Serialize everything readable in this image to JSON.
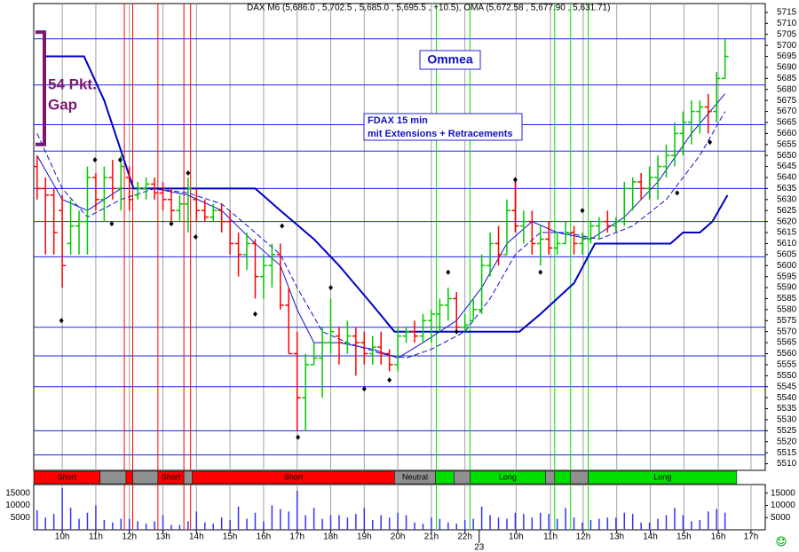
{
  "chart_data": {
    "type": "ohlc",
    "title": "DAX M6 (5,686.0 , 5,702.5 , 5,685.0 , 5,695.5 , +10.5), OMA (5,672.58 , 5,677.90 , 5,631.71)",
    "annotations": {
      "gap_line1": "54 Pkt.",
      "gap_line2": "Gap",
      "name": "Ommea",
      "info_line1": "FDAX 15 min",
      "info_line2": "mit Extensions + Retracements"
    },
    "up_color": "#00c800",
    "down_color": "#ff0000",
    "ohlc": [
      [
        5645,
        5650,
        5630,
        5635
      ],
      [
        5635,
        5640,
        5605,
        5632
      ],
      [
        5632,
        5635,
        5605,
        5615
      ],
      [
        5625,
        5632,
        5590,
        5600
      ],
      [
        5610,
        5630,
        5605,
        5618
      ],
      [
        5618,
        5625,
        5605,
        5620
      ],
      [
        5620,
        5645,
        5605,
        5640
      ],
      [
        5640,
        5642,
        5625,
        5630
      ],
      [
        5630,
        5645,
        5620,
        5640
      ],
      [
        5640,
        5648,
        5630,
        5635
      ],
      [
        5635,
        5650,
        5625,
        5645
      ],
      [
        5640,
        5645,
        5625,
        5630
      ],
      [
        5632,
        5638,
        5630,
        5635
      ],
      [
        5635,
        5640,
        5630,
        5637
      ],
      [
        5637,
        5640,
        5630,
        5633
      ],
      [
        5633,
        5638,
        5625,
        5630
      ],
      [
        5630,
        5635,
        5620,
        5625
      ],
      [
        5625,
        5632,
        5620,
        5628
      ],
      [
        5628,
        5640,
        5615,
        5635
      ],
      [
        5630,
        5635,
        5620,
        5625
      ],
      [
        5625,
        5630,
        5620,
        5622
      ],
      [
        5622,
        5628,
        5620,
        5625
      ],
      [
        5625,
        5628,
        5615,
        5620
      ],
      [
        5620,
        5625,
        5605,
        5610
      ],
      [
        5610,
        5615,
        5595,
        5605
      ],
      [
        5605,
        5615,
        5598,
        5610
      ],
      [
        5610,
        5612,
        5585,
        5595
      ],
      [
        5595,
        5605,
        5585,
        5600
      ],
      [
        5600,
        5610,
        5590,
        5605
      ],
      [
        5605,
        5610,
        5580,
        5582
      ],
      [
        5582,
        5590,
        5560,
        5560
      ],
      [
        5560,
        5570,
        5525,
        5540
      ],
      [
        5540,
        5560,
        5525,
        5555
      ],
      [
        5555,
        5565,
        5555,
        5558
      ],
      [
        5558,
        5572,
        5540,
        5565
      ],
      [
        5565,
        5585,
        5560,
        5570
      ],
      [
        5568,
        5572,
        5555,
        5565
      ],
      [
        5565,
        5575,
        5560,
        5568
      ],
      [
        5568,
        5572,
        5550,
        5565
      ],
      [
        5565,
        5570,
        5555,
        5560
      ],
      [
        5560,
        5568,
        5555,
        5563
      ],
      [
        5563,
        5570,
        5555,
        5560
      ],
      [
        5560,
        5562,
        5552,
        5555
      ],
      [
        5555,
        5572,
        5552,
        5568
      ],
      [
        5568,
        5572,
        5565,
        5570
      ],
      [
        5570,
        5575,
        5565,
        5568
      ],
      [
        5568,
        5578,
        5565,
        5575
      ],
      [
        5575,
        5580,
        5565,
        5578
      ],
      [
        5578,
        5585,
        5570,
        5582
      ],
      [
        5582,
        5590,
        5575,
        5585
      ],
      [
        5585,
        5588,
        5570,
        5572
      ],
      [
        5572,
        5578,
        5570,
        5573
      ],
      [
        5575,
        5585,
        5575,
        5580
      ],
      [
        5580,
        5605,
        5578,
        5600
      ],
      [
        5600,
        5615,
        5595,
        5610
      ],
      [
        5610,
        5618,
        5600,
        5605
      ],
      [
        5605,
        5630,
        5605,
        5625
      ],
      [
        5625,
        5640,
        5615,
        5618
      ],
      [
        5618,
        5625,
        5610,
        5620
      ],
      [
        5620,
        5625,
        5605,
        5610
      ],
      [
        5610,
        5618,
        5600,
        5612
      ],
      [
        5612,
        5620,
        5605,
        5608
      ],
      [
        5608,
        5615,
        5605,
        5610
      ],
      [
        5610,
        5620,
        5610,
        5615
      ],
      [
        5615,
        5618,
        5605,
        5610
      ],
      [
        5610,
        5615,
        5605,
        5612
      ],
      [
        5612,
        5620,
        5610,
        5618
      ],
      [
        5618,
        5622,
        5612,
        5620
      ],
      [
        5620,
        5625,
        5615,
        5618
      ],
      [
        5618,
        5622,
        5615,
        5620
      ],
      [
        5620,
        5638,
        5618,
        5635
      ],
      [
        5635,
        5640,
        5625,
        5638
      ],
      [
        5638,
        5642,
        5630,
        5635
      ],
      [
        5635,
        5645,
        5630,
        5640
      ],
      [
        5640,
        5650,
        5630,
        5645
      ],
      [
        5645,
        5655,
        5640,
        5650
      ],
      [
        5650,
        5665,
        5645,
        5660
      ],
      [
        5660,
        5670,
        5650,
        5665
      ],
      [
        5665,
        5675,
        5655,
        5670
      ],
      [
        5670,
        5675,
        5660,
        5672
      ],
      [
        5672,
        5678,
        5660,
        5670
      ],
      [
        5670,
        5688,
        5665,
        5685
      ],
      [
        5685,
        5703,
        5685,
        5695
      ]
    ],
    "volume": [
      8000,
      5000,
      6500,
      17000,
      9000,
      4500,
      7000,
      10000,
      4000,
      3000,
      4500,
      4500,
      3500,
      2500,
      3500,
      6000,
      2000,
      2000,
      3500,
      7500,
      3000,
      2500,
      5000,
      4000,
      9500,
      4500,
      7000,
      3500,
      10000,
      8500,
      7500,
      16000,
      6000,
      9000,
      4500,
      6000,
      6000,
      5000,
      6500,
      9000,
      4000,
      6000,
      5000,
      7000,
      6000,
      3000,
      2500,
      5000,
      4500,
      3000,
      2500,
      4000,
      4500,
      9500,
      6000,
      5000,
      4500,
      7000,
      6500,
      5000,
      7000,
      6500,
      4500,
      9000,
      5000,
      3000,
      4000,
      4500,
      5000,
      5000,
      7000,
      6500,
      3000,
      3000,
      4500,
      6000,
      9000,
      6000,
      3500,
      4000,
      7500,
      8500,
      7000
    ],
    "volume_color": "#3333ff",
    "lines": [
      {
        "color": "#1010d0",
        "width": 1,
        "dash": false,
        "x": [
          0,
          3,
          6,
          10,
          14,
          18,
          22,
          26,
          29,
          31,
          33,
          36,
          40,
          43,
          46,
          50,
          53,
          56,
          59,
          62,
          66,
          70,
          74,
          78,
          82
        ],
        "values": [
          5650,
          5630,
          5625,
          5635,
          5635,
          5632,
          5625,
          5610,
          5600,
          5580,
          5565,
          5565,
          5562,
          5558,
          5565,
          5575,
          5590,
          5610,
          5620,
          5615,
          5612,
          5622,
          5638,
          5660,
          5678
        ]
      },
      {
        "color": "#1010d0",
        "width": 1,
        "dash": true,
        "x": [
          0,
          3,
          6,
          10,
          14,
          18,
          22,
          26,
          29,
          31,
          34,
          37,
          41,
          44,
          47,
          51,
          54,
          57,
          60,
          63,
          67,
          71,
          75,
          79,
          82
        ],
        "values": [
          5660,
          5635,
          5622,
          5630,
          5635,
          5633,
          5628,
          5615,
          5605,
          5590,
          5570,
          5565,
          5560,
          5558,
          5562,
          5570,
          5585,
          5605,
          5615,
          5615,
          5612,
          5618,
          5630,
          5650,
          5670
        ]
      },
      {
        "color": "#0000c8",
        "width": 2,
        "dash": false,
        "x": [
          1,
          5.6,
          8,
          11.5,
          26,
          29,
          33,
          36,
          40,
          42.6,
          57.5,
          60,
          62,
          64,
          66.5,
          75.5,
          77,
          79,
          80.5,
          82.3
        ],
        "values": [
          5695,
          5695,
          5675,
          5635,
          5635,
          5625,
          5612,
          5600,
          5582,
          5570,
          5570,
          5578,
          5585,
          5592,
          5610,
          5610,
          5615,
          5615,
          5620,
          5632
        ]
      }
    ],
    "markers": {
      "x": [
        2.9,
        6.9,
        8.9,
        9.9,
        16,
        18,
        18.9,
        26,
        29.2,
        31.1,
        35,
        39,
        42,
        49,
        50,
        57,
        60,
        65,
        76.3,
        80.2
      ],
      "values": [
        5575,
        5648,
        5619,
        5648,
        5619,
        5642,
        5613,
        5578,
        5618,
        5522,
        5590,
        5544,
        5548,
        5597,
        5570,
        5639,
        5597,
        5625,
        5633,
        5656
      ]
    },
    "levels": [
      5703,
      5682,
      5664,
      5652,
      5635,
      5620,
      5604,
      5572,
      5559,
      5545,
      5525,
      5514
    ],
    "level_color": "#2020e0",
    "red_vlines": [
      10.4,
      11.4,
      14.4,
      17.5,
      18.3
    ],
    "green_vlines": [
      47.6,
      51.6,
      61.7,
      63.6,
      65.7
    ],
    "gap_bracket": [
      5655,
      5706
    ],
    "segments": [
      {
        "from": -0.4,
        "to": 7.5,
        "color": "#ff0000",
        "label": "Short"
      },
      {
        "from": 7.5,
        "to": 10.6,
        "color": "#909090"
      },
      {
        "from": 10.6,
        "to": 11.4,
        "color": "#ff0000"
      },
      {
        "from": 11.4,
        "to": 14.4,
        "color": "#909090"
      },
      {
        "from": 14.4,
        "to": 17.5,
        "color": "#ff0000",
        "label": "Short"
      },
      {
        "from": 17.5,
        "to": 18.5,
        "color": "#909090"
      },
      {
        "from": 18.5,
        "to": 42.6,
        "color": "#ff0000",
        "label": "Short"
      },
      {
        "from": 42.6,
        "to": 47.5,
        "color": "#909090",
        "label": "Neutral"
      },
      {
        "from": 47.5,
        "to": 49.7,
        "color": "#00e000"
      },
      {
        "from": 49.7,
        "to": 51.6,
        "color": "#909090"
      },
      {
        "from": 51.6,
        "to": 60.6,
        "color": "#00e000",
        "label": "Long"
      },
      {
        "from": 60.6,
        "to": 61.7,
        "color": "#909090"
      },
      {
        "from": 61.7,
        "to": 63.6,
        "color": "#00e000"
      },
      {
        "from": 63.6,
        "to": 65.7,
        "color": "#909090"
      },
      {
        "from": 65.7,
        "to": 83.4,
        "color": "#00e000",
        "label": "Long"
      }
    ],
    "xlim": [
      -0.4,
      86.8
    ],
    "xticks": [
      {
        "value": 3,
        "label": "10h"
      },
      {
        "value": 7,
        "label": "11h"
      },
      {
        "value": 11,
        "label": "12h"
      },
      {
        "value": 15,
        "label": "13h"
      },
      {
        "value": 19,
        "label": "14h"
      },
      {
        "value": 23,
        "label": "15h"
      },
      {
        "value": 27,
        "label": "16h"
      },
      {
        "value": 31,
        "label": "17h"
      },
      {
        "value": 35,
        "label": "18h"
      },
      {
        "value": 39,
        "label": "19h"
      },
      {
        "value": 43,
        "label": "20h"
      },
      {
        "value": 47,
        "label": "21h"
      },
      {
        "value": 51,
        "label": "22h"
      },
      {
        "value": 57.1,
        "label": "10h"
      },
      {
        "value": 61.2,
        "label": "11h"
      },
      {
        "value": 65.1,
        "label": "12h"
      },
      {
        "value": 69.1,
        "label": "13h"
      },
      {
        "value": 73.1,
        "label": "14h"
      },
      {
        "value": 77.1,
        "label": "15h"
      },
      {
        "value": 81.2,
        "label": "16h"
      },
      {
        "value": 85.1,
        "label": "17h"
      }
    ],
    "date_ticks": [
      {
        "value": 52.7,
        "label": "23"
      }
    ],
    "ylim": [
      5507,
      5719
    ],
    "yticks": [
      5510,
      5515,
      5520,
      5525,
      5530,
      5535,
      5540,
      5545,
      5550,
      5555,
      5560,
      5565,
      5570,
      5575,
      5580,
      5585,
      5590,
      5595,
      5600,
      5605,
      5610,
      5615,
      5620,
      5625,
      5630,
      5635,
      5640,
      5645,
      5650,
      5655,
      5660,
      5665,
      5670,
      5675,
      5680,
      5685,
      5690,
      5695,
      5700,
      5705,
      5710,
      5715
    ],
    "volume_ylim": [
      0,
      18500
    ],
    "volume_yticks": [
      5000,
      10000,
      15000
    ]
  }
}
